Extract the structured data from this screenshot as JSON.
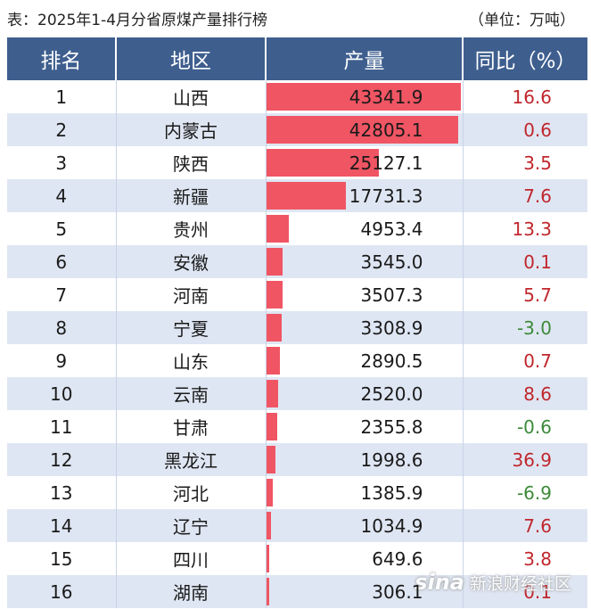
{
  "caption": {
    "title": "表：2025年1-4月分省原煤产量排行榜",
    "unit": "（单位：万吨）"
  },
  "colors": {
    "header_bg": "#3e5e8e",
    "bar": "#f05563",
    "positive": "#c0272d",
    "negative": "#3d8a3a",
    "alt_row": "#dfe6f3"
  },
  "chart_data": {
    "type": "table",
    "columns": [
      "排名",
      "地区",
      "产量",
      "同比（%）"
    ],
    "rows": [
      {
        "rank": "1",
        "region": "山西",
        "output": 43341.9,
        "output_text": "43341.9",
        "yoy": "16.6"
      },
      {
        "rank": "2",
        "region": "内蒙古",
        "output": 42805.1,
        "output_text": "42805.1",
        "yoy": "0.6"
      },
      {
        "rank": "3",
        "region": "陕西",
        "output": 25127.1,
        "output_text": "25127.1",
        "yoy": "3.5"
      },
      {
        "rank": "4",
        "region": "新疆",
        "output": 17731.3,
        "output_text": "17731.3",
        "yoy": "7.6"
      },
      {
        "rank": "5",
        "region": "贵州",
        "output": 4953.4,
        "output_text": "4953.4",
        "yoy": "13.3"
      },
      {
        "rank": "6",
        "region": "安徽",
        "output": 3545.0,
        "output_text": "3545.0",
        "yoy": "0.1"
      },
      {
        "rank": "7",
        "region": "河南",
        "output": 3507.3,
        "output_text": "3507.3",
        "yoy": "5.7"
      },
      {
        "rank": "8",
        "region": "宁夏",
        "output": 3308.9,
        "output_text": "3308.9",
        "yoy": "-3.0"
      },
      {
        "rank": "9",
        "region": "山东",
        "output": 2890.5,
        "output_text": "2890.5",
        "yoy": "0.7"
      },
      {
        "rank": "10",
        "region": "云南",
        "output": 2520.0,
        "output_text": "2520.0",
        "yoy": "8.6"
      },
      {
        "rank": "11",
        "region": "甘肃",
        "output": 2355.8,
        "output_text": "2355.8",
        "yoy": "-0.6"
      },
      {
        "rank": "12",
        "region": "黑龙江",
        "output": 1998.6,
        "output_text": "1998.6",
        "yoy": "36.9"
      },
      {
        "rank": "13",
        "region": "河北",
        "output": 1385.9,
        "output_text": "1385.9",
        "yoy": "-6.9"
      },
      {
        "rank": "14",
        "region": "辽宁",
        "output": 1034.9,
        "output_text": "1034.9",
        "yoy": "7.6"
      },
      {
        "rank": "15",
        "region": "四川",
        "output": 649.6,
        "output_text": "649.6",
        "yoy": "3.8"
      },
      {
        "rank": "16",
        "region": "湖南",
        "output": 306.1,
        "output_text": "306.1",
        "yoy": "0.1"
      }
    ]
  },
  "watermark": {
    "logo": "sina",
    "text": "新浪财经社区"
  }
}
